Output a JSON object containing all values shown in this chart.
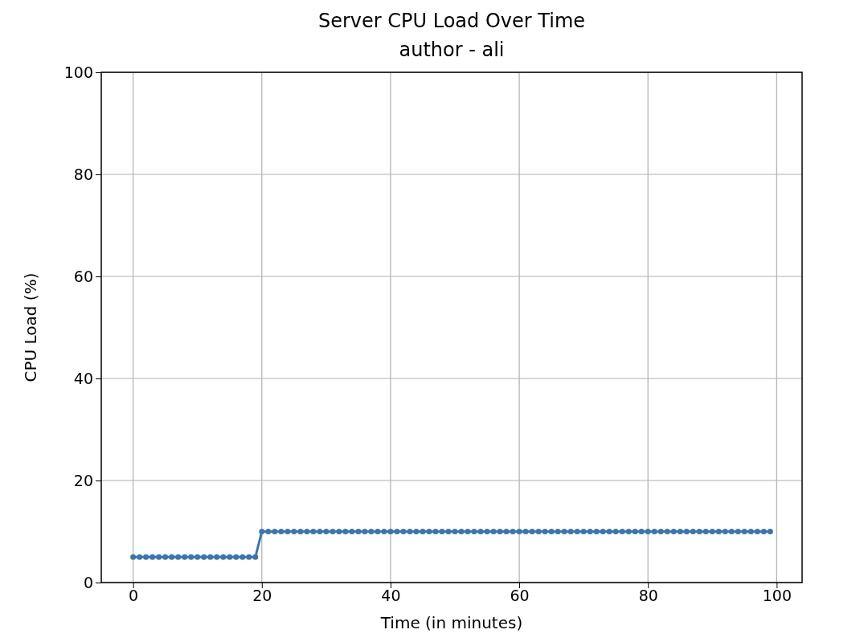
{
  "chart_data": {
    "type": "line",
    "title": "Server CPU Load Over Time",
    "subtitle": "author - ali",
    "xlabel": "Time (in minutes)",
    "ylabel": "CPU Load (%)",
    "x": [
      0,
      1,
      2,
      3,
      4,
      5,
      6,
      7,
      8,
      9,
      10,
      11,
      12,
      13,
      14,
      15,
      16,
      17,
      18,
      19,
      20,
      21,
      22,
      23,
      24,
      25,
      26,
      27,
      28,
      29,
      30,
      31,
      32,
      33,
      34,
      35,
      36,
      37,
      38,
      39,
      40,
      41,
      42,
      43,
      44,
      45,
      46,
      47,
      48,
      49,
      50,
      51,
      52,
      53,
      54,
      55,
      56,
      57,
      58,
      59,
      60,
      61,
      62,
      63,
      64,
      65,
      66,
      67,
      68,
      69,
      70,
      71,
      72,
      73,
      74,
      75,
      76,
      77,
      78,
      79,
      80,
      81,
      82,
      83,
      84,
      85,
      86,
      87,
      88,
      89,
      90,
      91,
      92,
      93,
      94,
      95,
      96,
      97,
      98,
      99
    ],
    "values": [
      5,
      5,
      5,
      5,
      5,
      5,
      5,
      5,
      5,
      5,
      5,
      5,
      5,
      5,
      5,
      5,
      5,
      5,
      5,
      5,
      10,
      10,
      10,
      10,
      10,
      10,
      10,
      10,
      10,
      10,
      10,
      10,
      10,
      10,
      10,
      10,
      10,
      10,
      10,
      10,
      10,
      10,
      10,
      10,
      10,
      10,
      10,
      10,
      10,
      10,
      10,
      10,
      10,
      10,
      10,
      10,
      10,
      10,
      10,
      10,
      10,
      10,
      10,
      10,
      10,
      10,
      10,
      10,
      10,
      10,
      10,
      10,
      10,
      10,
      10,
      10,
      10,
      10,
      10,
      10,
      10,
      10,
      10,
      10,
      10,
      10,
      10,
      10,
      10,
      10,
      10,
      10,
      10,
      10,
      10,
      10,
      10,
      10,
      10,
      10
    ],
    "color": "#3a76b0",
    "xlim": [
      -4.95,
      103.95
    ],
    "xticks": [
      0,
      20,
      40,
      60,
      80,
      100
    ],
    "ylim": [
      0,
      100
    ],
    "yticks": [
      0,
      20,
      40,
      60,
      80,
      100
    ],
    "grid": true,
    "marker": "circle",
    "line_style": "solid"
  }
}
